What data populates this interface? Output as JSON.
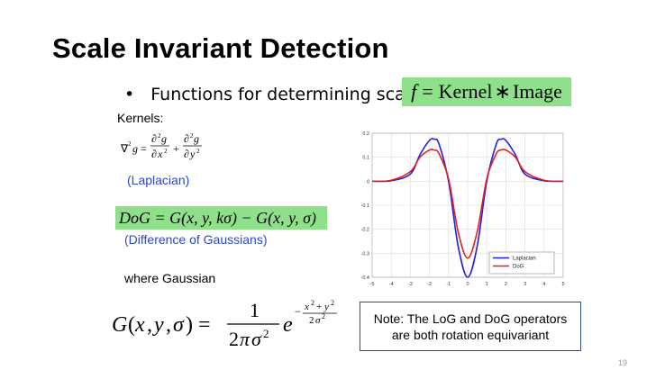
{
  "slide": {
    "title": "Scale Invariant Detection",
    "bullet": "Functions for determining scale",
    "bullet_marker": "•",
    "equation": {
      "lhs": "f",
      "eq": "=",
      "kernel": "Kernel",
      "op": "∗",
      "image": "Image"
    },
    "kernels_label": "Kernels:",
    "laplacian_label": "(Laplacian)",
    "dog_formula": "DoG = G(x, y, kσ) − G(x, y, σ)",
    "dog_label": "(Difference of Gaussians)",
    "where_label": "where Gaussian",
    "note": "Note: The LoG and DoG operators are both rotation equivariant",
    "page_number": "19"
  },
  "chart_data": {
    "type": "line",
    "xlim": [
      -5,
      5
    ],
    "ylim": [
      -0.4,
      0.2
    ],
    "x_ticks": [
      "-5",
      "-4",
      "-3",
      "-2",
      "-1",
      "0",
      "1",
      "2",
      "3",
      "4",
      "5"
    ],
    "y_ticks": [
      "0.2",
      "0.1",
      "0",
      "-0.1",
      "-0.2",
      "-0.3",
      "-0.4"
    ],
    "grid": true,
    "legend_position": "bottom-right",
    "series": [
      {
        "name": "Laplacian",
        "color": "#2020e0",
        "x": [
          -5,
          -4,
          -3,
          -2.5,
          -2,
          -1.75,
          -1.5,
          -1,
          -0.5,
          0,
          0.5,
          1,
          1.5,
          1.75,
          2,
          2.5,
          3,
          4,
          5
        ],
        "y": [
          0,
          0.002,
          0.03,
          0.11,
          0.17,
          0.175,
          0.155,
          0.0,
          -0.27,
          -0.4,
          -0.27,
          0.0,
          0.155,
          0.175,
          0.17,
          0.11,
          0.03,
          0.002,
          0
        ]
      },
      {
        "name": "DoG",
        "color": "#e02020",
        "x": [
          -5,
          -4,
          -3,
          -2.5,
          -2,
          -1.75,
          -1.5,
          -1,
          -0.5,
          0,
          0.5,
          1,
          1.5,
          1.75,
          2,
          2.5,
          3,
          4,
          5
        ],
        "y": [
          0,
          0.004,
          0.04,
          0.1,
          0.13,
          0.13,
          0.115,
          0.01,
          -0.21,
          -0.32,
          -0.21,
          0.01,
          0.115,
          0.13,
          0.13,
          0.1,
          0.04,
          0.004,
          0
        ]
      }
    ]
  }
}
